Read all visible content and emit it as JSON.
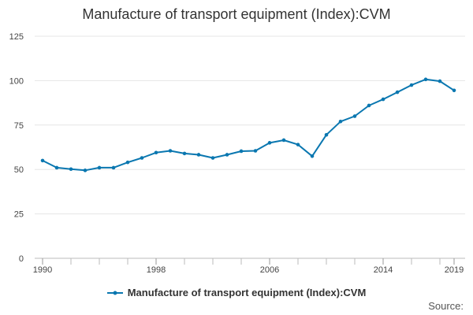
{
  "chart_data": {
    "type": "line",
    "title": "Manufacture of transport equipment (Index):CVM",
    "xlabel": "",
    "ylabel": "",
    "xlim": [
      1990,
      2019
    ],
    "ylim": [
      0,
      125
    ],
    "yticks": [
      "0",
      "25",
      "50",
      "75",
      "100",
      "125"
    ],
    "xticks": [
      "1990",
      "1998",
      "2006",
      "2014",
      "2019"
    ],
    "x": [
      1990,
      1991,
      1992,
      1993,
      1994,
      1995,
      1996,
      1997,
      1998,
      1999,
      2000,
      2001,
      2002,
      2003,
      2004,
      2005,
      2006,
      2007,
      2008,
      2009,
      2010,
      2011,
      2012,
      2013,
      2014,
      2015,
      2016,
      2017,
      2018,
      2019
    ],
    "series": [
      {
        "name": "Manufacture of transport equipment (Index):CVM",
        "color": "#0a77b0",
        "values": [
          55,
          51,
          50.2,
          49.5,
          51,
          51,
          54,
          56.5,
          59.5,
          60.5,
          59,
          58.3,
          56.5,
          58.3,
          60.3,
          60.5,
          65,
          66.5,
          64,
          57.5,
          69.5,
          77,
          80,
          86,
          89.5,
          93.5,
          97.5,
          100.7,
          99.7,
          94.5
        ]
      }
    ],
    "grid": true,
    "legend": "bottom"
  },
  "source_label": "Source:"
}
